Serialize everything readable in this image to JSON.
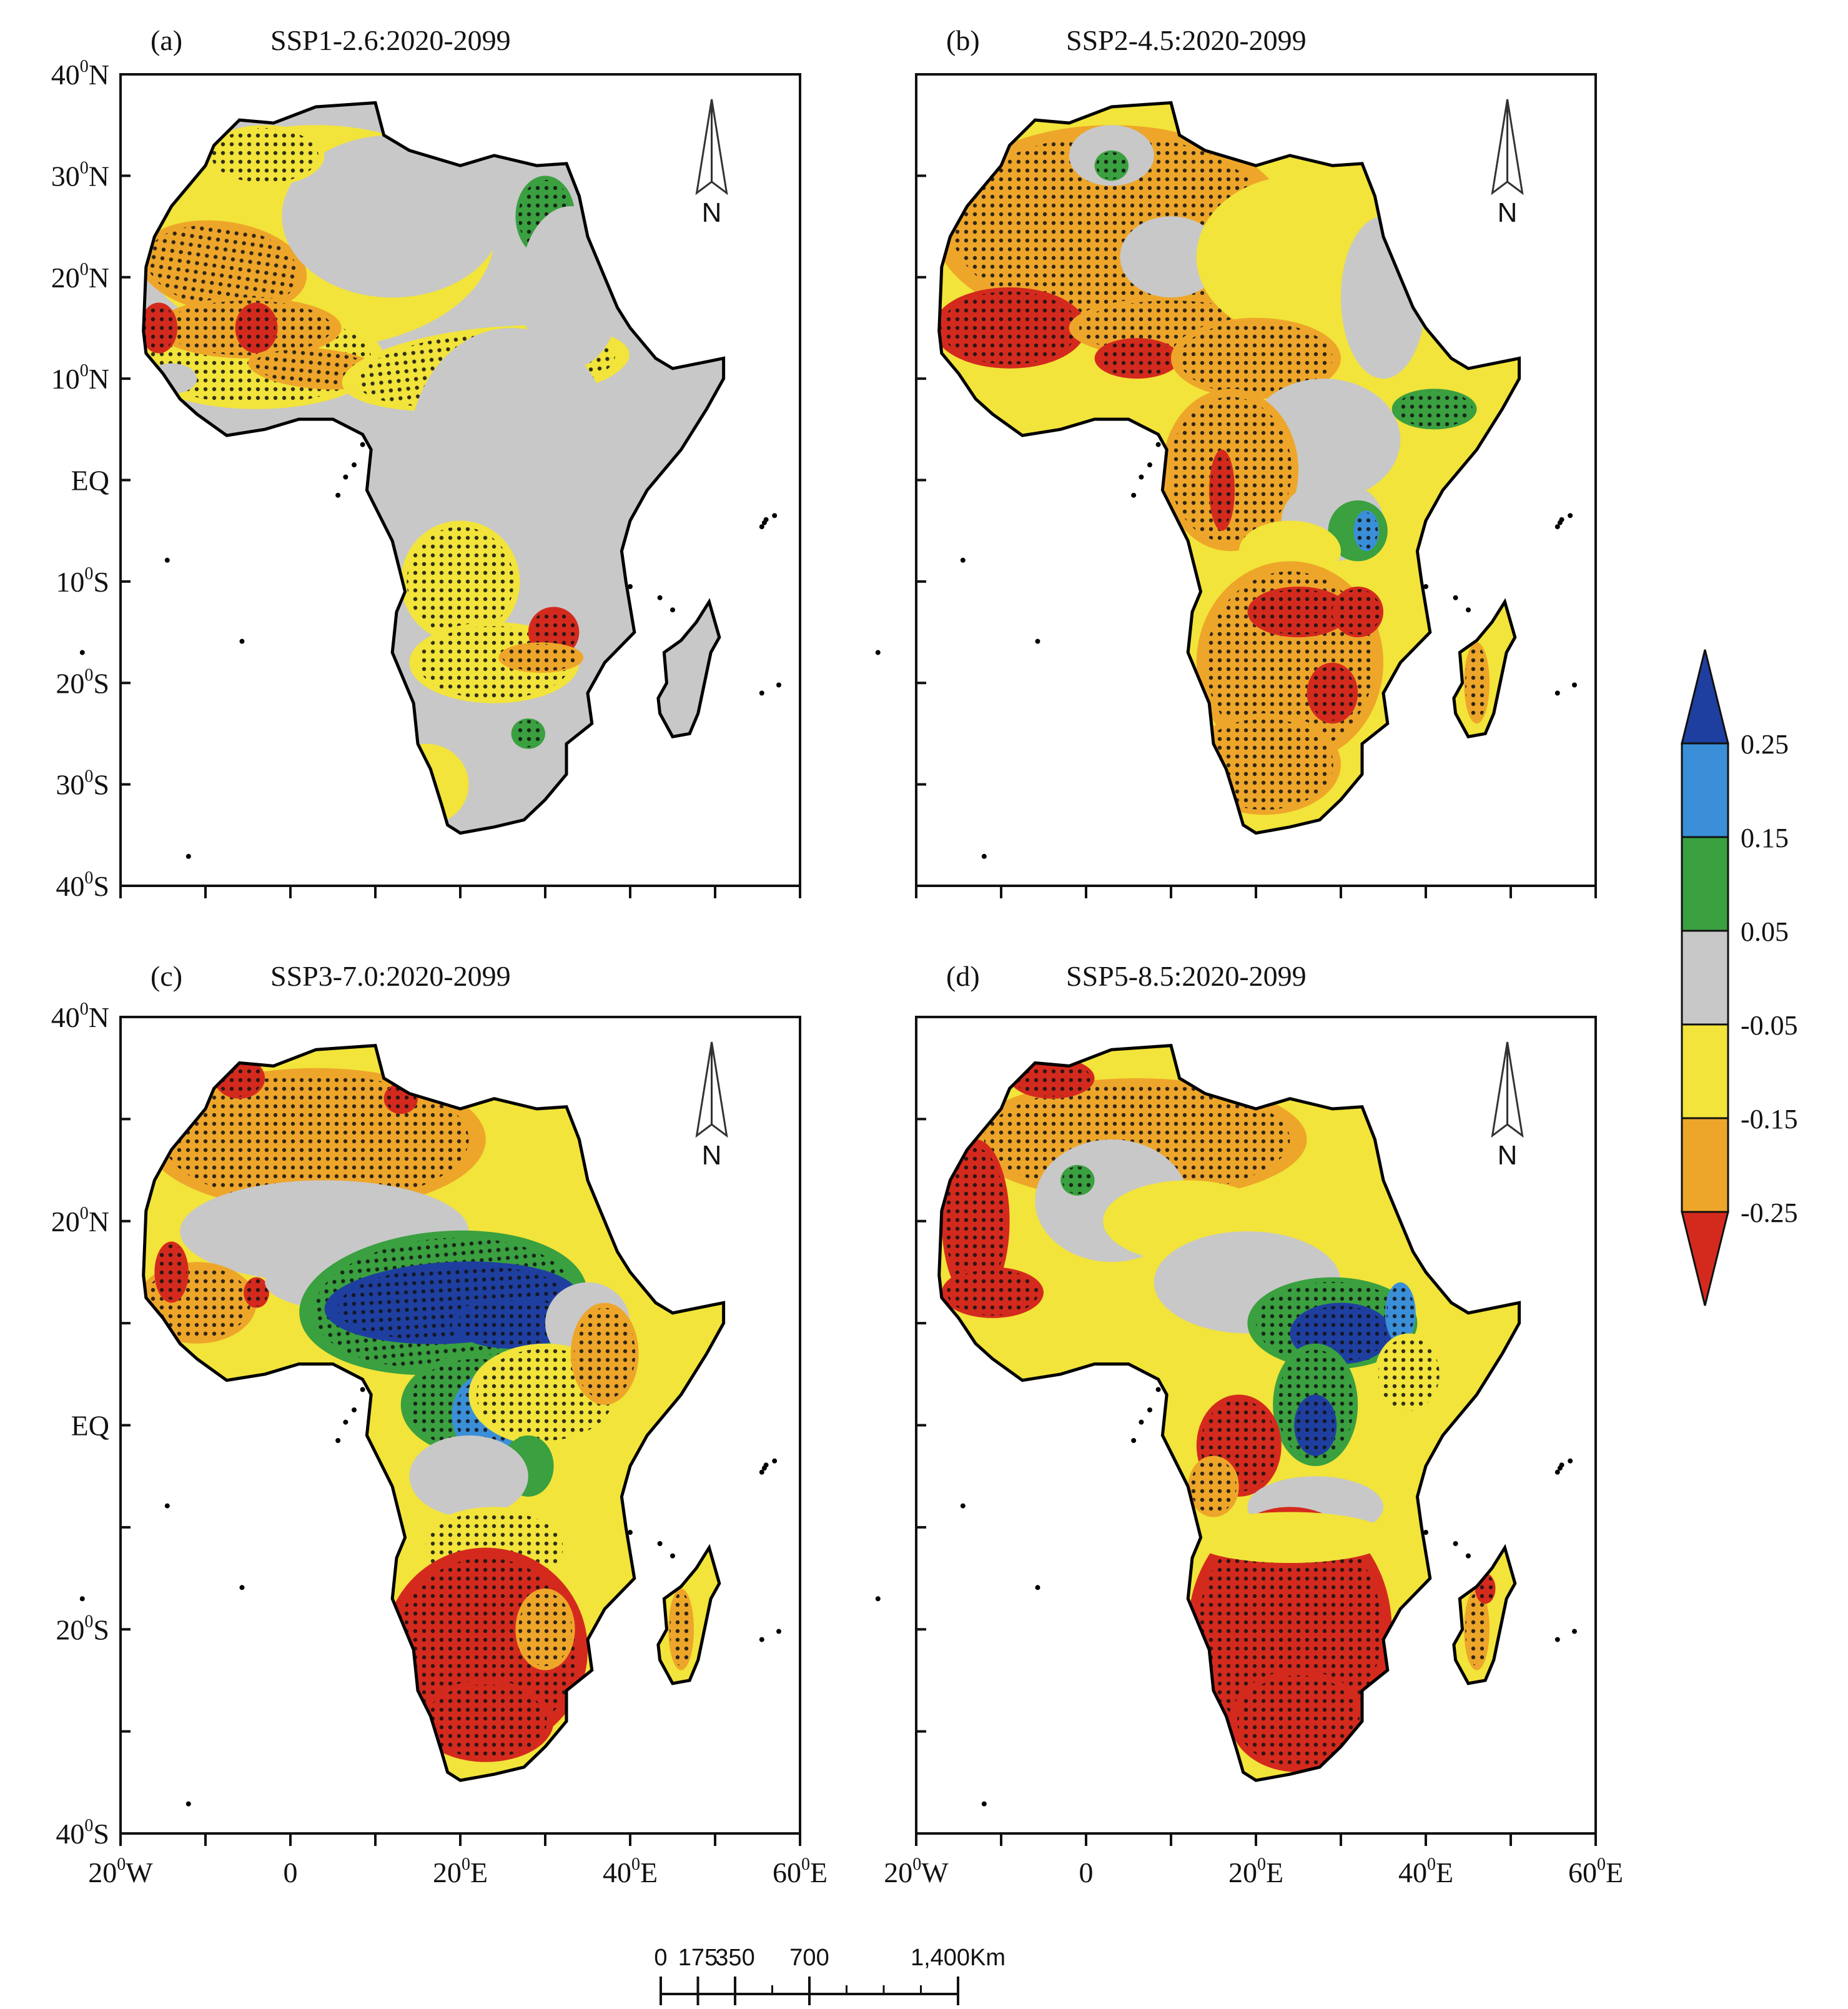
{
  "panels": [
    {
      "letter": "(a)",
      "title": "SSP1-2.6:2020-2099"
    },
    {
      "letter": "(b)",
      "title": "SSP2-4.5:2020-2099"
    },
    {
      "letter": "(c)",
      "title": "SSP3-7.0:2020-2099"
    },
    {
      "letter": "(d)",
      "title": "SSP5-8.5:2020-2099"
    }
  ],
  "lat_labels": [
    {
      "value": 40,
      "sup": "0",
      "text": "40",
      "hemi": "N"
    },
    {
      "value": 30,
      "sup": "0",
      "text": "30",
      "hemi": "N"
    },
    {
      "value": 20,
      "sup": "0",
      "text": "20",
      "hemi": "N"
    },
    {
      "value": 10,
      "sup": "0",
      "text": "10",
      "hemi": "N"
    },
    {
      "value": 0,
      "sup": "",
      "text": "EQ",
      "hemi": ""
    },
    {
      "value": -10,
      "sup": "0",
      "text": "10",
      "hemi": "S"
    },
    {
      "value": -20,
      "sup": "0",
      "text": "20",
      "hemi": "S"
    },
    {
      "value": -30,
      "sup": "0",
      "text": "30",
      "hemi": "S"
    },
    {
      "value": -40,
      "sup": "0",
      "text": "40",
      "hemi": "S"
    }
  ],
  "lat_labels_lower": [
    {
      "value": 40,
      "sup": "0",
      "text": "40",
      "hemi": "N"
    },
    {
      "value": 20,
      "sup": "0",
      "text": "20",
      "hemi": "N"
    },
    {
      "value": 0,
      "sup": "",
      "text": "EQ",
      "hemi": ""
    },
    {
      "value": -20,
      "sup": "0",
      "text": "20",
      "hemi": "S"
    },
    {
      "value": -40,
      "sup": "0",
      "text": "40",
      "hemi": "S"
    }
  ],
  "lon_labels": [
    {
      "value": -20,
      "sup": "0",
      "text": "20",
      "hemi": "W"
    },
    {
      "value": 0,
      "sup": "",
      "text": "0",
      "hemi": ""
    },
    {
      "value": 20,
      "sup": "0",
      "text": "20",
      "hemi": "E"
    },
    {
      "value": 40,
      "sup": "0",
      "text": "40",
      "hemi": "E"
    },
    {
      "value": 60,
      "sup": "0",
      "text": "60",
      "hemi": "E"
    }
  ],
  "north_arrow": {
    "label": "N"
  },
  "legend": {
    "tick_labels": [
      "0.25",
      "0.15",
      "0.05",
      "-0.05",
      "-0.15",
      "-0.25"
    ],
    "colors": [
      "#1f3fa0",
      "#3a8fd8",
      "#3aa040",
      "#c8c8c8",
      "#f2e43a",
      "#eea62a",
      "#d42a1e"
    ]
  },
  "scale_bar": {
    "labels": [
      "0",
      "175",
      "350",
      "700",
      "1,400Km"
    ],
    "values_km": [
      0,
      175,
      350,
      700,
      1400
    ]
  },
  "colors": {
    "frame": "#111111",
    "land_outline": "#000000",
    "stipple": "#111111"
  }
}
